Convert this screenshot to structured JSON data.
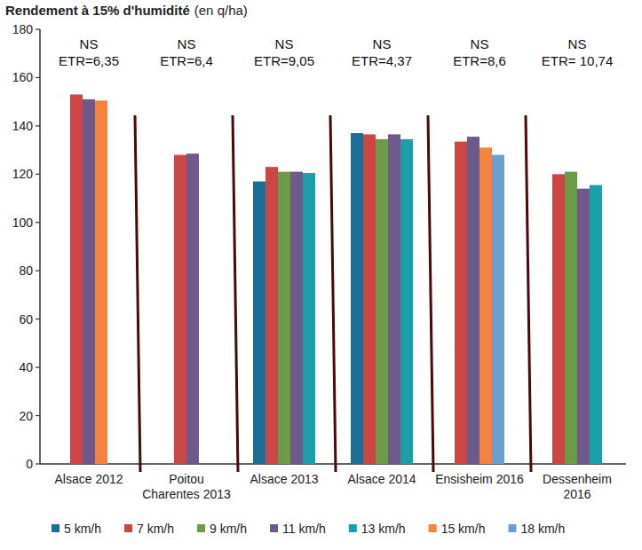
{
  "chart_data": {
    "type": "bar",
    "title": "Rendement à 15% d'humidité",
    "subtitle": "(en q/ha)",
    "categories": [
      "Alsace 2012",
      "Poitou\nCharentes 2013",
      "Alsace 2013",
      "Alsace 2014",
      "Ensisheim 2016",
      "Dessenheim\n2016"
    ],
    "series": [
      {
        "name": "5 km/h",
        "color": "#1b6f96",
        "values": [
          null,
          null,
          117,
          137,
          null,
          null
        ]
      },
      {
        "name": "7 km/h",
        "color": "#cc4646",
        "values": [
          153,
          128,
          123,
          136.5,
          133.5,
          120
        ]
      },
      {
        "name": "9 km/h",
        "color": "#6b9a48",
        "values": [
          null,
          null,
          121,
          134.5,
          null,
          121
        ]
      },
      {
        "name": "11 km/h",
        "color": "#6d5a8b",
        "values": [
          151,
          128.5,
          121,
          136.5,
          135.5,
          114
        ]
      },
      {
        "name": "13 km/h",
        "color": "#1aa0a9",
        "values": [
          null,
          null,
          120.5,
          134.5,
          null,
          115.5
        ]
      },
      {
        "name": "15 km/h",
        "color": "#f5823d",
        "values": [
          150.5,
          null,
          null,
          null,
          131,
          null
        ]
      },
      {
        "name": "18 km/h",
        "color": "#6f9ecd",
        "values": [
          null,
          null,
          null,
          null,
          128,
          null
        ]
      }
    ],
    "group_annotations": [
      [
        "NS",
        "ETR=6,35"
      ],
      [
        "NS",
        "ETR=6,4"
      ],
      [
        "NS",
        "ETR=9,05"
      ],
      [
        "NS",
        "ETR=4,37"
      ],
      [
        "NS",
        "ETR=8,6"
      ],
      [
        "NS",
        "ETR= 10,74"
      ]
    ],
    "ylim": [
      0,
      180
    ],
    "yticks": [
      0,
      20,
      40,
      60,
      80,
      100,
      120,
      140,
      160,
      180
    ],
    "grid": false,
    "legend": "bottom"
  }
}
